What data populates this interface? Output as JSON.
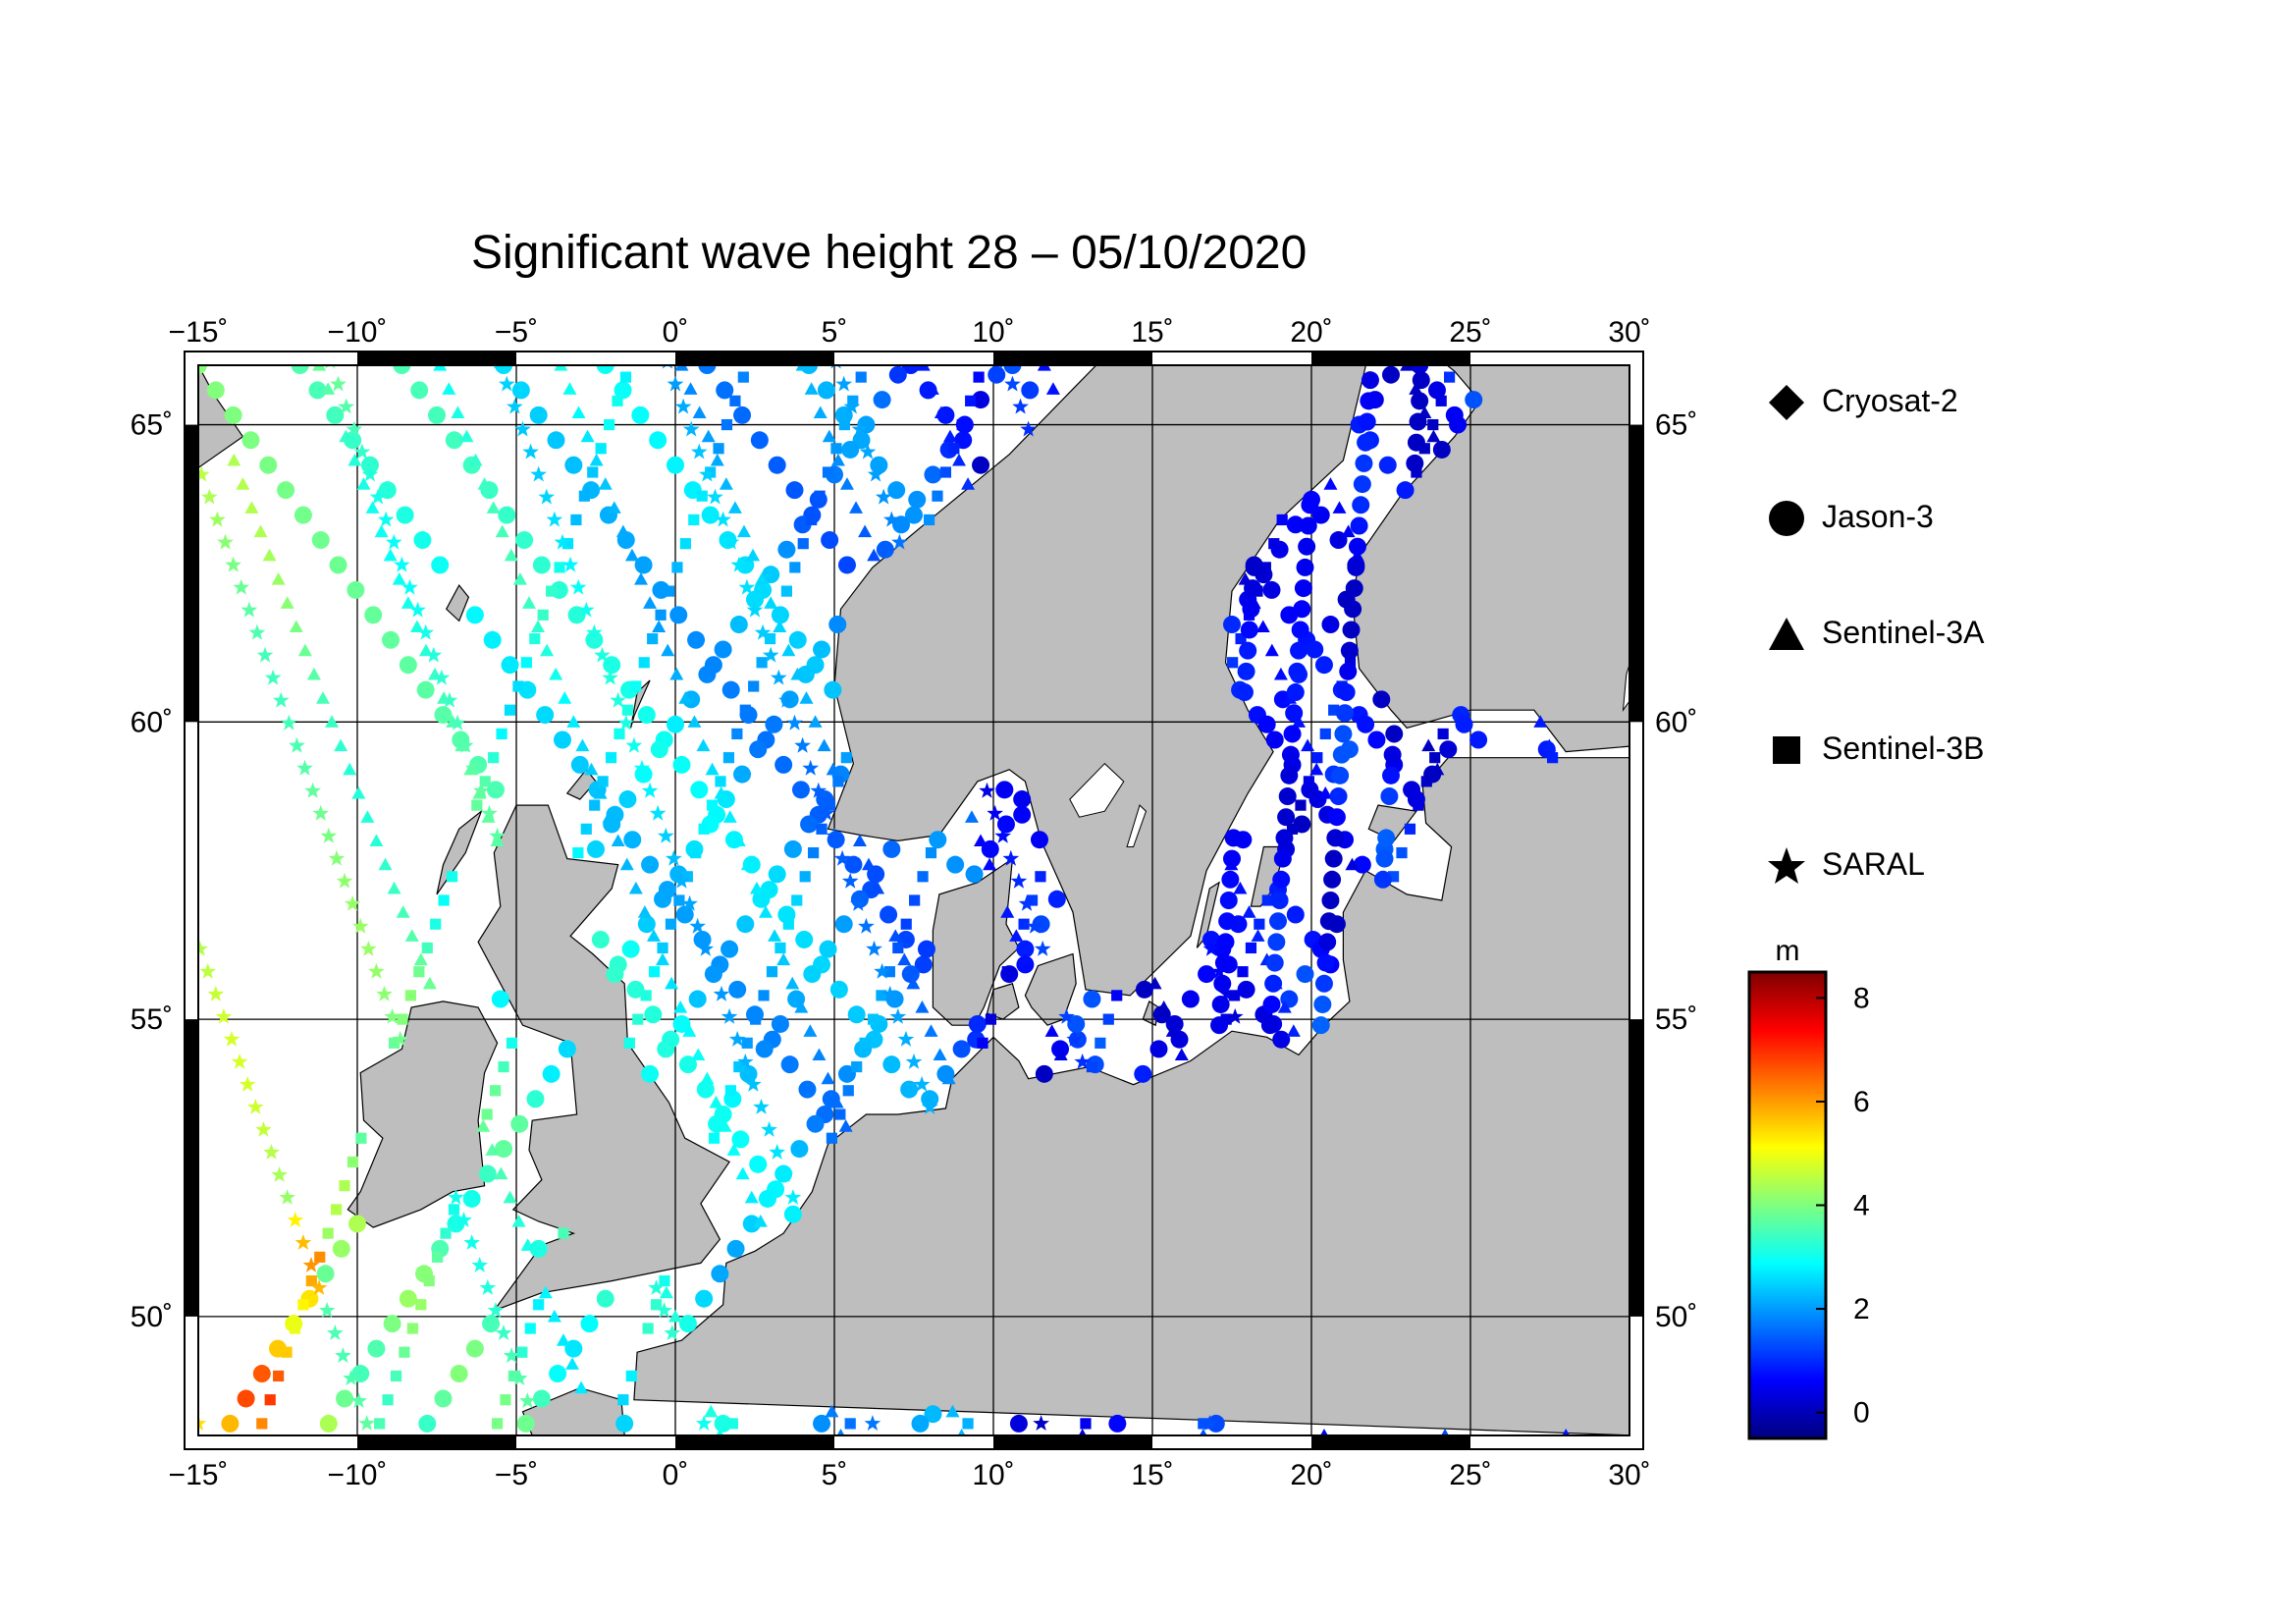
{
  "title": "Significant wave height 28 – 05/10/2020",
  "map": {
    "lon_range": [
      -15,
      30
    ],
    "lat_range": [
      48,
      66
    ],
    "lon_ticks": [
      "−15˚",
      "−10˚",
      "−5˚",
      "0˚",
      "5˚",
      "10˚",
      "15˚",
      "20˚",
      "25˚",
      "30˚"
    ],
    "lat_ticks": [
      "50˚",
      "55˚",
      "60˚",
      "65˚"
    ],
    "land_color": "#bebebe",
    "sea_color": "#ffffff"
  },
  "legend": {
    "items": [
      {
        "label": "Cryosat-2",
        "symbol": "diamond-icon"
      },
      {
        "label": "Jason-3",
        "symbol": "circle-icon"
      },
      {
        "label": "Sentinel-3A",
        "symbol": "triangle-icon"
      },
      {
        "label": "Sentinel-3B",
        "symbol": "square-icon"
      },
      {
        "label": "SARAL",
        "symbol": "star-icon"
      }
    ]
  },
  "colorbar": {
    "unit": "m",
    "ticks": [
      "8",
      "6",
      "4",
      "2",
      "0"
    ],
    "range": [
      -0.5,
      8.5
    ],
    "colors": [
      "#00007f",
      "#0000ff",
      "#007fff",
      "#00ffff",
      "#7fff7f",
      "#ffff00",
      "#ff7f00",
      "#ff0000",
      "#7f0000"
    ]
  }
}
